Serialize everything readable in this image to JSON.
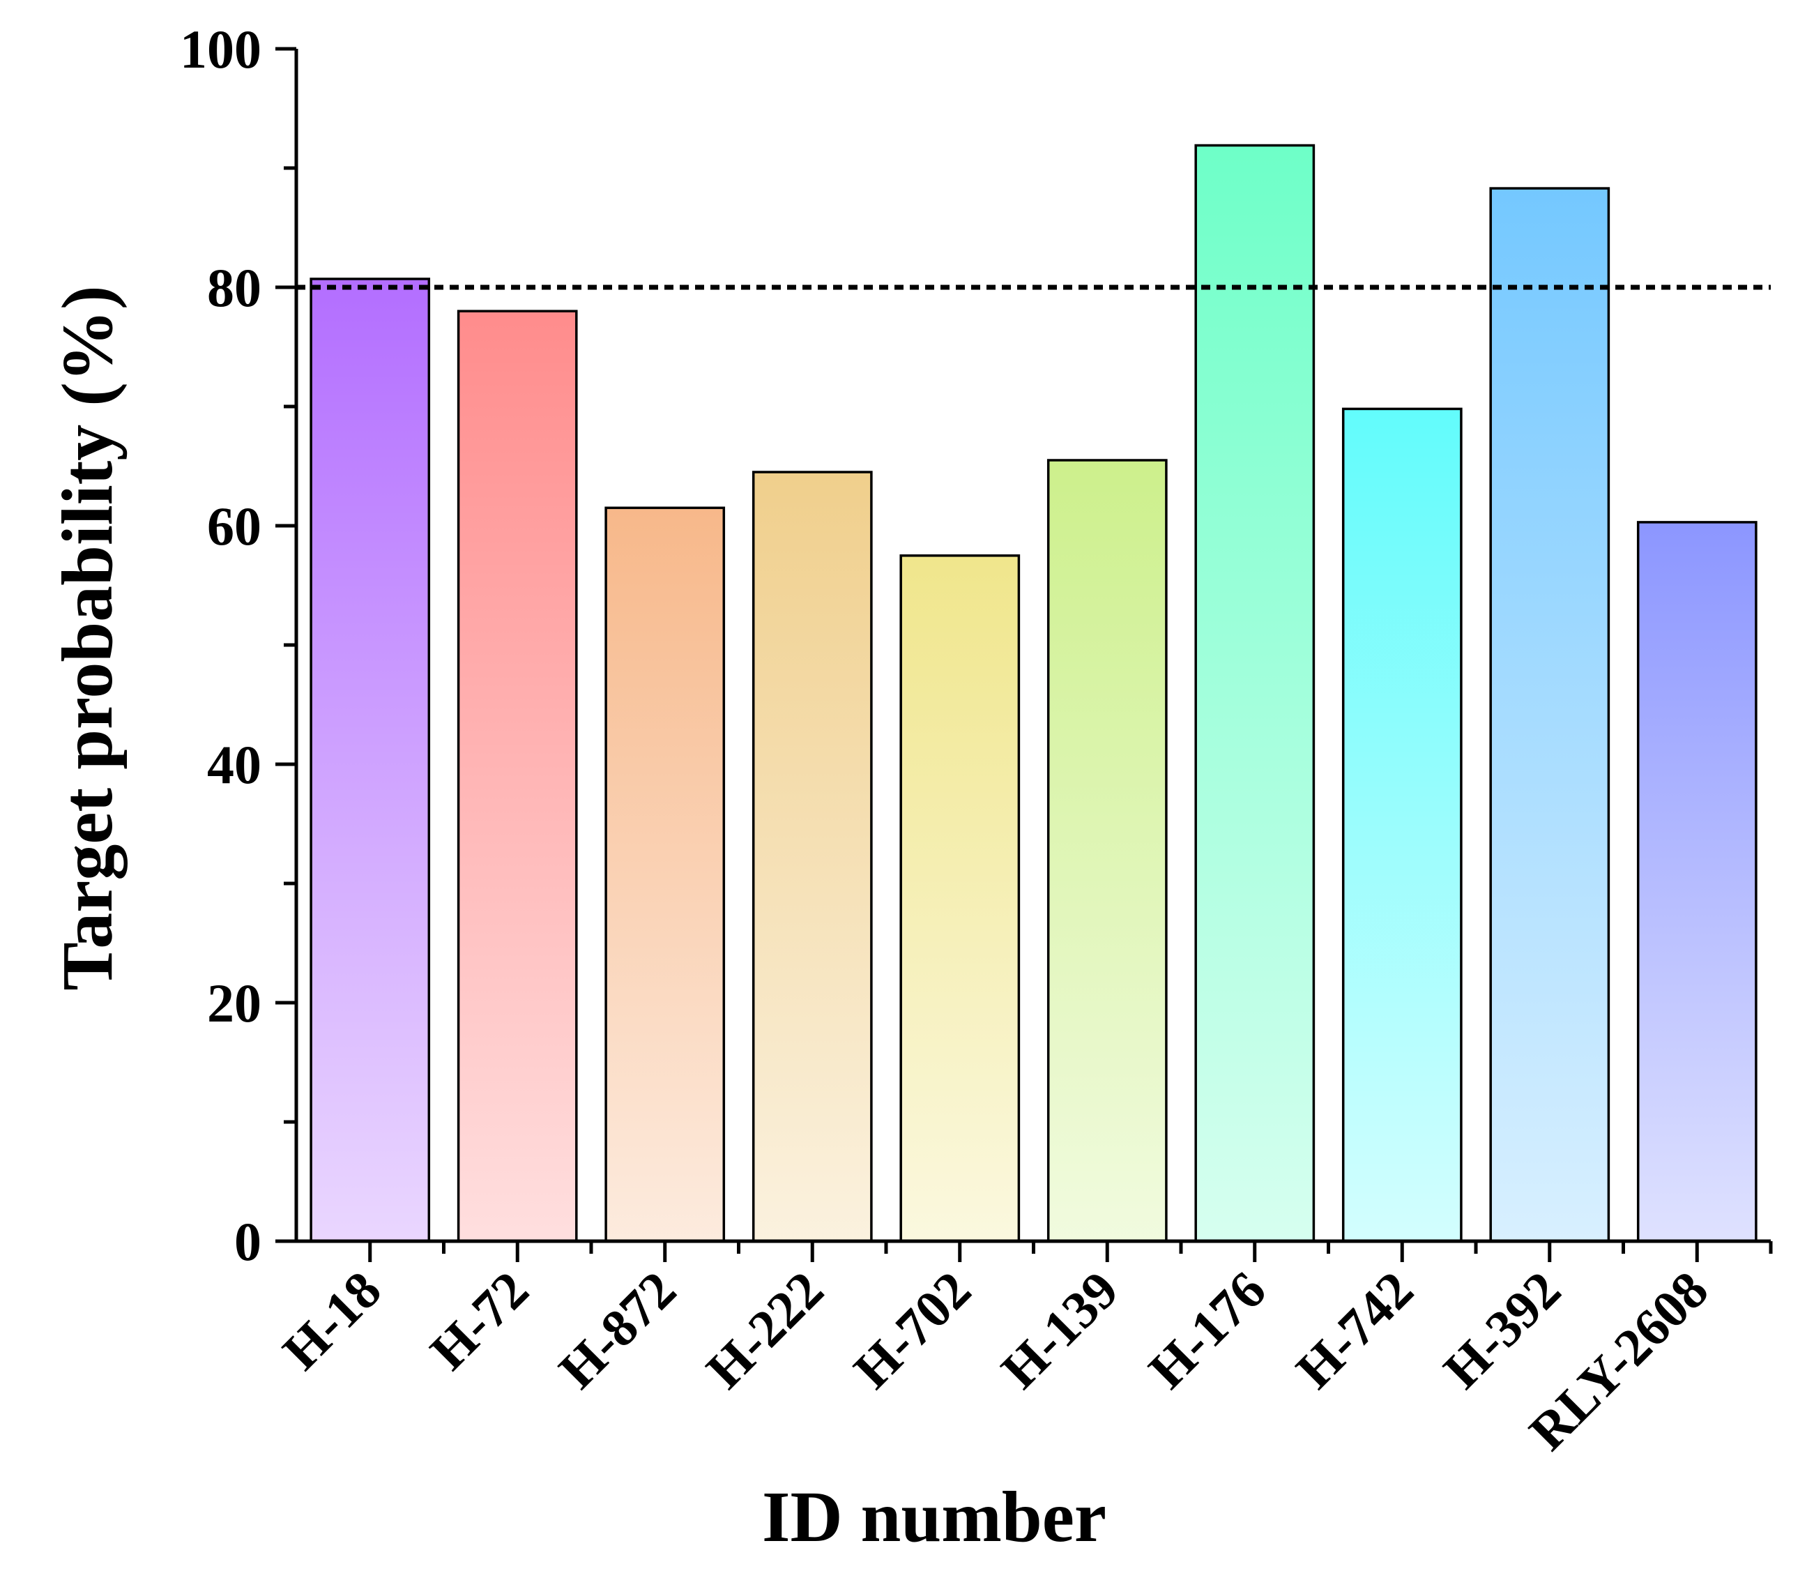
{
  "chart_data": {
    "type": "bar",
    "title": "",
    "xlabel": "ID number",
    "ylabel": "Target probability (%)",
    "ylim": [
      0,
      100
    ],
    "yticks": [
      0,
      20,
      40,
      60,
      80,
      100
    ],
    "yminor_step": 10,
    "categories": [
      "H-18",
      "H-72",
      "H-872",
      "H-222",
      "H-702",
      "H-139",
      "H-176",
      "H-742",
      "H-392",
      "RLY-2608"
    ],
    "values": [
      80.7,
      78.0,
      61.5,
      64.5,
      57.5,
      65.5,
      91.9,
      69.8,
      88.3,
      60.3
    ],
    "bar_colors": [
      "#b36eff",
      "#ff8c8c",
      "#f7b88a",
      "#f0cf8c",
      "#f0e68c",
      "#cdf08c",
      "#6effc8",
      "#62fcfc",
      "#74c8ff",
      "#8c96ff"
    ],
    "reference_line": {
      "y": 80,
      "style": "dashed",
      "color": "#000000"
    },
    "grid": false,
    "legend": "none"
  }
}
